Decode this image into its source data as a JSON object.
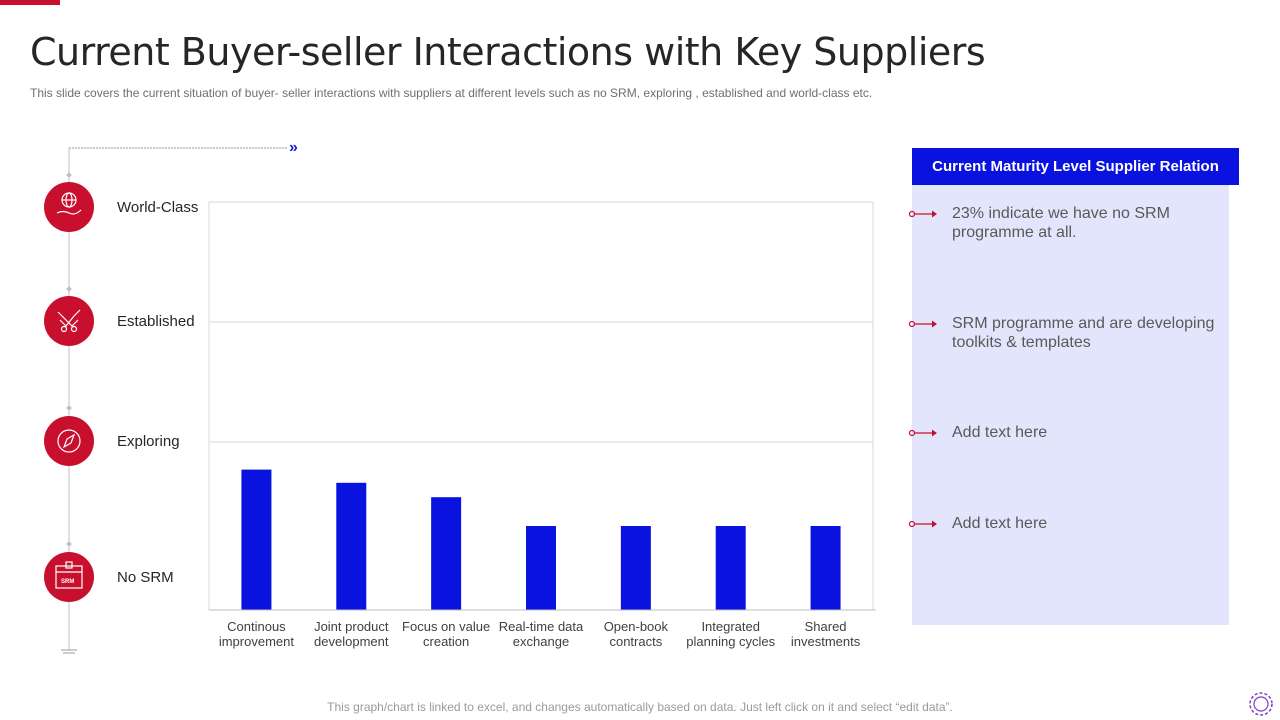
{
  "title": "Current Buyer-seller Interactions with Key Suppliers",
  "subtitle": "This slide covers  the current situation of buyer- seller interactions with suppliers at different levels such as no SRM,  exploring , established and world-class etc.",
  "levels": [
    {
      "label": "World-Class",
      "icon": "globe-hand-icon"
    },
    {
      "label": "Established",
      "icon": "handshake-icon"
    },
    {
      "label": "Exploring",
      "icon": "compass-icon"
    },
    {
      "label": "No SRM",
      "icon": "srm-box-icon"
    }
  ],
  "chart_data": {
    "type": "bar",
    "categories": [
      "Continous improvement",
      "Joint product development",
      "Focus on value creation",
      "Real-time data exchange",
      "Open-book contracts",
      "Integrated planning cycles",
      "Shared investments"
    ],
    "category_lines": [
      [
        "Continous",
        "improvement"
      ],
      [
        "Joint product",
        "development"
      ],
      [
        "Focus on value",
        "creation"
      ],
      [
        "Real-time data",
        "exchange"
      ],
      [
        "Open-book",
        "contracts"
      ],
      [
        "Integrated",
        "planning cycles"
      ],
      [
        "Shared",
        "investments"
      ]
    ],
    "values": [
      1.17,
      1.06,
      0.94,
      0.7,
      0.7,
      0.7,
      0.7
    ],
    "ylim": [
      0,
      3.4
    ],
    "gridlines": [
      1.4,
      2.4,
      3.4
    ],
    "bar_color": "#0a12e0",
    "grid": true
  },
  "panel": {
    "header": "Current Maturity Level Supplier Relation",
    "bullets": [
      "23% indicate we have no SRM programme at all.",
      "SRM programme and are developing toolkits & templates",
      "Add text here",
      "Add text here"
    ]
  },
  "footnote": "This graph/chart is linked to excel, and changes automatically based on data. Just left click on it and select “edit data”.",
  "colors": {
    "accent_red": "#c8102e",
    "bar_blue": "#0a12e0",
    "panel_bg": "#e3e5fc"
  }
}
